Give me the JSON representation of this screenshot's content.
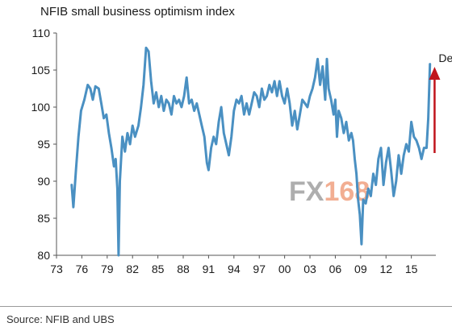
{
  "chart_data": {
    "type": "line",
    "title": "NFIB small business optimism index",
    "xlabel": "",
    "ylabel": "",
    "xlim": [
      1973,
      2017.9
    ],
    "ylim": [
      80,
      110
    ],
    "y_ticks": [
      80,
      85,
      90,
      95,
      100,
      105,
      110
    ],
    "x_ticks": [
      1973,
      1976,
      1979,
      1982,
      1985,
      1988,
      1991,
      1994,
      1997,
      2000,
      2003,
      2006,
      2009,
      2012,
      2015
    ],
    "x_tick_labels": [
      "73",
      "76",
      "79",
      "82",
      "85",
      "88",
      "91",
      "94",
      "97",
      "00",
      "03",
      "06",
      "09",
      "12",
      "15"
    ],
    "grid": false,
    "legend": "none",
    "series": [
      {
        "color": "#4a90c2",
        "points": [
          [
            1974.8,
            89.5
          ],
          [
            1975.0,
            86.5
          ],
          [
            1975.3,
            91.5
          ],
          [
            1975.6,
            96.0
          ],
          [
            1975.9,
            99.5
          ],
          [
            1976.3,
            101.0
          ],
          [
            1976.7,
            103.0
          ],
          [
            1977.0,
            102.5
          ],
          [
            1977.3,
            101.0
          ],
          [
            1977.6,
            102.8
          ],
          [
            1978.0,
            102.5
          ],
          [
            1978.3,
            100.5
          ],
          [
            1978.6,
            98.5
          ],
          [
            1978.9,
            99.0
          ],
          [
            1979.2,
            96.5
          ],
          [
            1979.5,
            94.5
          ],
          [
            1979.8,
            92.0
          ],
          [
            1980.0,
            93.0
          ],
          [
            1980.2,
            89.0
          ],
          [
            1980.35,
            80.0
          ],
          [
            1980.5,
            90.0
          ],
          [
            1980.8,
            96.0
          ],
          [
            1981.1,
            94.0
          ],
          [
            1981.4,
            96.5
          ],
          [
            1981.7,
            95.0
          ],
          [
            1982.0,
            97.5
          ],
          [
            1982.3,
            96.0
          ],
          [
            1982.7,
            97.5
          ],
          [
            1983.0,
            100.0
          ],
          [
            1983.3,
            103.0
          ],
          [
            1983.6,
            108.0
          ],
          [
            1983.9,
            107.5
          ],
          [
            1984.2,
            103.5
          ],
          [
            1984.5,
            100.5
          ],
          [
            1984.8,
            102.0
          ],
          [
            1985.1,
            100.0
          ],
          [
            1985.4,
            101.5
          ],
          [
            1985.7,
            99.5
          ],
          [
            1986.0,
            101.0
          ],
          [
            1986.3,
            100.5
          ],
          [
            1986.6,
            99.0
          ],
          [
            1986.9,
            101.5
          ],
          [
            1987.2,
            100.5
          ],
          [
            1987.5,
            101.0
          ],
          [
            1987.8,
            100.0
          ],
          [
            1988.1,
            101.5
          ],
          [
            1988.4,
            104.0
          ],
          [
            1988.7,
            100.5
          ],
          [
            1989.0,
            101.0
          ],
          [
            1989.3,
            99.5
          ],
          [
            1989.6,
            100.5
          ],
          [
            1989.9,
            99.0
          ],
          [
            1990.2,
            97.5
          ],
          [
            1990.5,
            96.0
          ],
          [
            1990.8,
            92.5
          ],
          [
            1991.0,
            91.5
          ],
          [
            1991.3,
            94.5
          ],
          [
            1991.6,
            96.0
          ],
          [
            1991.9,
            95.0
          ],
          [
            1992.2,
            98.0
          ],
          [
            1992.5,
            100.0
          ],
          [
            1992.8,
            96.5
          ],
          [
            1993.1,
            95.0
          ],
          [
            1993.4,
            93.5
          ],
          [
            1993.7,
            96.0
          ],
          [
            1994.0,
            99.5
          ],
          [
            1994.3,
            101.0
          ],
          [
            1994.6,
            100.5
          ],
          [
            1994.9,
            101.5
          ],
          [
            1995.2,
            99.0
          ],
          [
            1995.5,
            100.5
          ],
          [
            1995.8,
            99.0
          ],
          [
            1996.1,
            100.5
          ],
          [
            1996.4,
            102.0
          ],
          [
            1996.7,
            101.5
          ],
          [
            1997.0,
            100.0
          ],
          [
            1997.3,
            102.5
          ],
          [
            1997.6,
            101.0
          ],
          [
            1997.9,
            101.5
          ],
          [
            1998.2,
            103.0
          ],
          [
            1998.5,
            102.0
          ],
          [
            1998.8,
            103.5
          ],
          [
            1999.1,
            101.5
          ],
          [
            1999.4,
            103.5
          ],
          [
            1999.7,
            101.5
          ],
          [
            2000.0,
            100.5
          ],
          [
            2000.3,
            102.5
          ],
          [
            2000.6,
            100.5
          ],
          [
            2000.9,
            97.5
          ],
          [
            2001.2,
            99.5
          ],
          [
            2001.5,
            97.0
          ],
          [
            2001.8,
            99.0
          ],
          [
            2002.1,
            101.0
          ],
          [
            2002.4,
            100.5
          ],
          [
            2002.7,
            100.0
          ],
          [
            2003.0,
            101.5
          ],
          [
            2003.3,
            102.5
          ],
          [
            2003.6,
            104.0
          ],
          [
            2003.9,
            106.5
          ],
          [
            2004.2,
            103.0
          ],
          [
            2004.5,
            105.5
          ],
          [
            2004.8,
            101.0
          ],
          [
            2005.0,
            106.5
          ],
          [
            2005.2,
            102.5
          ],
          [
            2005.5,
            101.0
          ],
          [
            2005.8,
            99.0
          ],
          [
            2006.0,
            101.0
          ],
          [
            2006.2,
            96.0
          ],
          [
            2006.4,
            99.5
          ],
          [
            2006.7,
            98.5
          ],
          [
            2007.0,
            96.5
          ],
          [
            2007.3,
            98.0
          ],
          [
            2007.6,
            95.5
          ],
          [
            2007.9,
            96.5
          ],
          [
            2008.1,
            95.5
          ],
          [
            2008.3,
            93.0
          ],
          [
            2008.5,
            91.0
          ],
          [
            2008.7,
            87.5
          ],
          [
            2008.9,
            85.5
          ],
          [
            2009.1,
            81.5
          ],
          [
            2009.3,
            87.5
          ],
          [
            2009.6,
            87.0
          ],
          [
            2009.9,
            89.0
          ],
          [
            2010.2,
            88.0
          ],
          [
            2010.5,
            91.0
          ],
          [
            2010.8,
            89.5
          ],
          [
            2011.1,
            93.0
          ],
          [
            2011.4,
            94.5
          ],
          [
            2011.7,
            89.5
          ],
          [
            2012.0,
            92.5
          ],
          [
            2012.3,
            94.5
          ],
          [
            2012.6,
            91.5
          ],
          [
            2012.9,
            88.0
          ],
          [
            2013.2,
            90.0
          ],
          [
            2013.5,
            93.5
          ],
          [
            2013.8,
            91.0
          ],
          [
            2014.1,
            93.5
          ],
          [
            2014.4,
            95.0
          ],
          [
            2014.7,
            94.0
          ],
          [
            2015.0,
            98.0
          ],
          [
            2015.3,
            96.0
          ],
          [
            2015.6,
            95.5
          ],
          [
            2015.9,
            94.5
          ],
          [
            2016.2,
            93.0
          ],
          [
            2016.5,
            94.5
          ],
          [
            2016.8,
            94.5
          ],
          [
            2017.0,
            98.5
          ],
          [
            2017.2,
            105.8
          ]
        ]
      }
    ],
    "annotations": [
      {
        "text": "Dec",
        "arrow_from": [
          2017.75,
          93.8
        ],
        "arrow_to": [
          2017.75,
          105.0
        ],
        "arrow_color": "#c0141b"
      }
    ]
  },
  "watermark": {
    "text_gray": "FX",
    "text_orange": "168",
    "color_gray": "#a0a0a0",
    "color_orange": "#f0a080"
  },
  "footer": {
    "source": "Source: NFIB and UBS"
  }
}
